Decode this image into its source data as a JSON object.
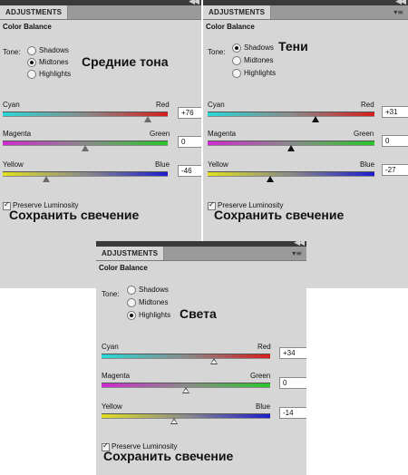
{
  "panels": [
    {
      "tab": "ADJUSTMENTS",
      "title": "Color Balance",
      "tone_label": "Tone:",
      "tones": [
        "Shadows",
        "Midtones",
        "Highlights"
      ],
      "selected_tone": 1,
      "overlay_label": "Средние тона",
      "sliders": [
        {
          "left": "Cyan",
          "right": "Red",
          "value": "+76"
        },
        {
          "left": "Magenta",
          "right": "Green",
          "value": "0"
        },
        {
          "left": "Yellow",
          "right": "Blue",
          "value": "-46"
        }
      ],
      "preserve": "Preserve Luminosity",
      "preserve_checked": true,
      "caption": "Сохранить свечение"
    },
    {
      "tab": "ADJUSTMENTS",
      "title": "Color Balance",
      "tone_label": "Tone:",
      "tones": [
        "Shadows",
        "Midtones",
        "Highlights"
      ],
      "selected_tone": 0,
      "overlay_label": "Тени",
      "sliders": [
        {
          "left": "Cyan",
          "right": "Red",
          "value": "+31"
        },
        {
          "left": "Magenta",
          "right": "Green",
          "value": "0"
        },
        {
          "left": "Yellow",
          "right": "Blue",
          "value": "-27"
        }
      ],
      "preserve": "Preserve Luminosity",
      "preserve_checked": true,
      "caption": "Сохранить свечение"
    },
    {
      "tab": "ADJUSTMENTS",
      "title": "Color Balance",
      "tone_label": "Tone:",
      "tones": [
        "Shadows",
        "Midtones",
        "Highlights"
      ],
      "selected_tone": 2,
      "overlay_label": "Света",
      "sliders": [
        {
          "left": "Cyan",
          "right": "Red",
          "value": "+34"
        },
        {
          "left": "Magenta",
          "right": "Green",
          "value": "0"
        },
        {
          "left": "Yellow",
          "right": "Blue",
          "value": "-14"
        }
      ],
      "preserve": "Preserve Luminosity",
      "preserve_checked": true,
      "caption": "Сохранить свечение"
    }
  ],
  "icons": {
    "collapse": "double-chevron-icon",
    "panel_menu": "panel-menu-icon"
  },
  "colors": {
    "panel_bg": "#d6d6d6",
    "tabbar_bg": "#9a9a9a",
    "cyan": "#28d8d8",
    "red": "#d81c1c",
    "magenta": "#d028d0",
    "green": "#28c828",
    "yellow": "#e0e020",
    "blue": "#1c1cd0"
  }
}
